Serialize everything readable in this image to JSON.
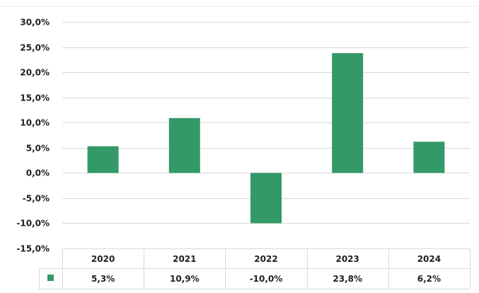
{
  "chart_data": {
    "type": "bar",
    "categories": [
      "2020",
      "2021",
      "2022",
      "2023",
      "2024"
    ],
    "series": [
      {
        "values": [
          5.3,
          10.9,
          -10.0,
          23.8,
          6.2
        ],
        "color": "#339966"
      }
    ],
    "data_labels": [
      "5,3%",
      "10,9%",
      "-10,0%",
      "23,8%",
      "6,2%"
    ],
    "ylim": [
      -15,
      30
    ],
    "ytick_values": [
      30,
      25,
      20,
      15,
      10,
      5,
      0,
      -5,
      -10,
      -15
    ],
    "ytick_labels": [
      "30,0%",
      "25,0%",
      "20,0%",
      "15,0%",
      "10,0%",
      "5,0%",
      "0,0%",
      "-5,0%",
      "-10,0%",
      "-15,0%"
    ],
    "grid": true,
    "data_table": true,
    "legend_key_in_table": true
  }
}
